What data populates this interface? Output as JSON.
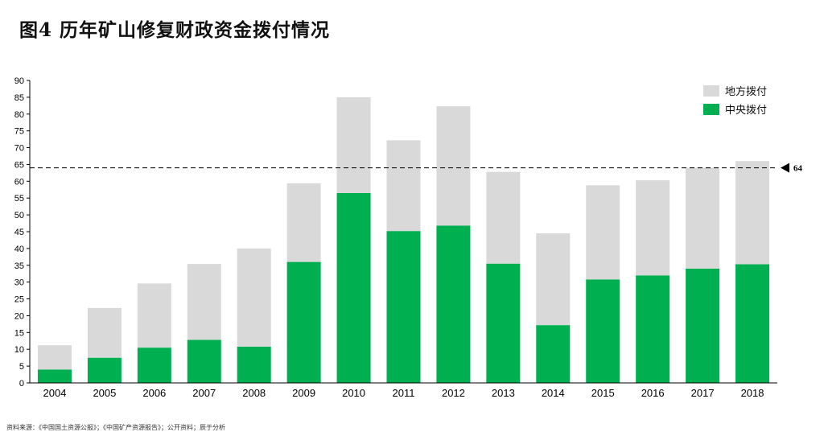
{
  "title": "图4 历年矿山修复财政资金拨付情况",
  "source": "资料来源：《中国国土资源公报》；《中国矿产资源报告》；公开资料；辰于分析",
  "colors": {
    "local": "#d9d9d9",
    "central": "#00b050",
    "axis": "#000000"
  },
  "chart_data": {
    "type": "bar",
    "stacked": true,
    "categories": [
      "2004",
      "2005",
      "2006",
      "2007",
      "2008",
      "2009",
      "2010",
      "2011",
      "2012",
      "2013",
      "2014",
      "2015",
      "2016",
      "2017",
      "2018"
    ],
    "series": [
      {
        "name": "中央拨付",
        "values": [
          4.0,
          7.5,
          10.5,
          12.8,
          10.8,
          36.0,
          56.5,
          45.2,
          46.8,
          35.5,
          17.2,
          30.8,
          32.0,
          34.0,
          35.3
        ]
      },
      {
        "name": "地方拨付",
        "values": [
          7.2,
          14.8,
          19.1,
          22.6,
          29.2,
          23.4,
          28.5,
          27.0,
          35.5,
          27.3,
          27.3,
          28.0,
          28.3,
          30.0,
          30.7
        ]
      }
    ],
    "yticks": [
      0,
      5,
      10,
      15,
      20,
      25,
      30,
      35,
      40,
      45,
      50,
      55,
      60,
      65,
      70,
      75,
      80,
      85,
      90
    ],
    "ylim": [
      0,
      90
    ],
    "reference_line": {
      "value": 64,
      "label": "64",
      "style": "dashed"
    },
    "legend": {
      "placement": "top-right",
      "entries": [
        "地方拨付",
        "中央拨付"
      ]
    },
    "grid": false
  }
}
